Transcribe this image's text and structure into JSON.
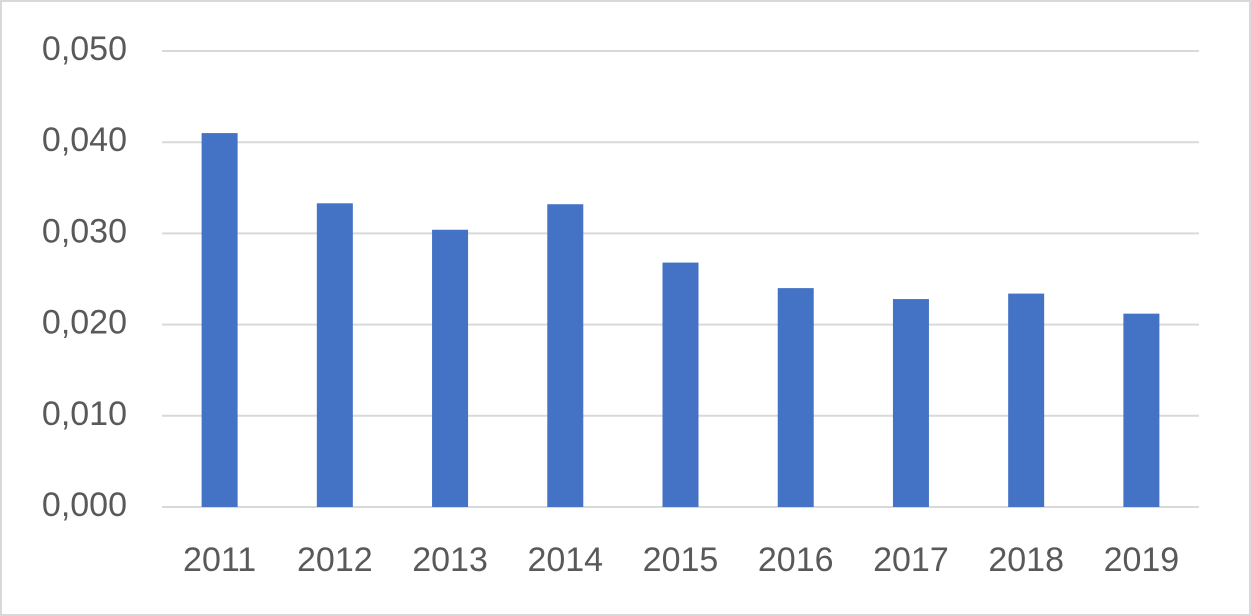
{
  "chart_data": {
    "type": "bar",
    "categories": [
      "2011",
      "2012",
      "2013",
      "2014",
      "2015",
      "2016",
      "2017",
      "2018",
      "2019"
    ],
    "values": [
      0.041,
      0.0333,
      0.0304,
      0.0332,
      0.0268,
      0.024,
      0.0228,
      0.0234,
      0.0212
    ],
    "color": "#4472c4",
    "ylim": [
      0,
      0.05
    ],
    "yticks": [
      {
        "value": 0,
        "label": "0,000"
      },
      {
        "value": 0.01,
        "label": "0,010"
      },
      {
        "value": 0.02,
        "label": "0,020"
      },
      {
        "value": 0.03,
        "label": "0,030"
      },
      {
        "value": 0.04,
        "label": "0,040"
      },
      {
        "value": 0.05,
        "label": "0,050"
      }
    ],
    "grid": true
  }
}
